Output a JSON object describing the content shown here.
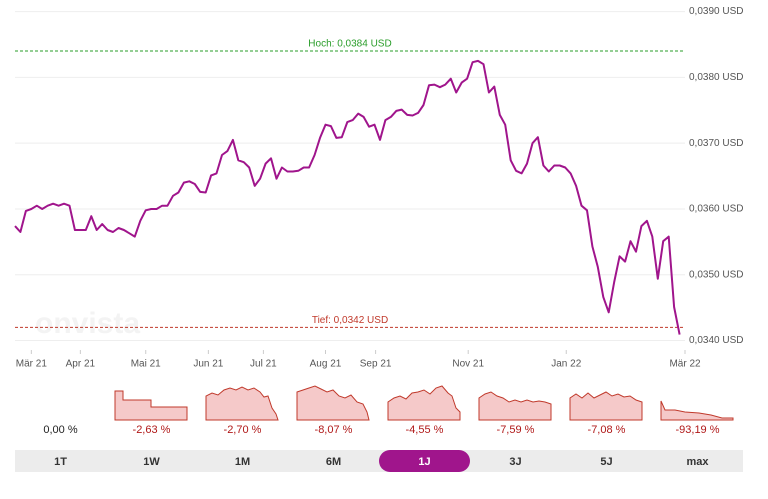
{
  "chart_data": {
    "type": "line",
    "watermark": "onvista",
    "series": [
      {
        "color": "#a0158c",
        "values": [
          0.03574,
          0.03565,
          0.03597,
          0.036,
          0.03605,
          0.036,
          0.03605,
          0.03608,
          0.03605,
          0.03608,
          0.03605,
          0.03568,
          0.03568,
          0.03568,
          0.03589,
          0.03568,
          0.03577,
          0.03568,
          0.03565,
          0.03571,
          0.03568,
          0.03563,
          0.03558,
          0.03582,
          0.03598,
          0.036,
          0.036,
          0.03605,
          0.03605,
          0.0362,
          0.03625,
          0.0364,
          0.03642,
          0.03638,
          0.03626,
          0.03625,
          0.03651,
          0.03654,
          0.03682,
          0.03688,
          0.03705,
          0.03674,
          0.03671,
          0.03663,
          0.03635,
          0.03646,
          0.03669,
          0.03677,
          0.03646,
          0.03663,
          0.03657,
          0.03657,
          0.03658,
          0.03663,
          0.03663,
          0.03682,
          0.03708,
          0.03728,
          0.03726,
          0.03708,
          0.03709,
          0.03732,
          0.03735,
          0.03745,
          0.0374,
          0.03725,
          0.03728,
          0.03705,
          0.03735,
          0.0374,
          0.03749,
          0.03751,
          0.03743,
          0.03742,
          0.03746,
          0.03758,
          0.03788,
          0.03789,
          0.03785,
          0.03789,
          0.03798,
          0.03777,
          0.03792,
          0.03798,
          0.03823,
          0.03825,
          0.0382,
          0.03777,
          0.03786,
          0.03743,
          0.03728,
          0.03674,
          0.03658,
          0.03654,
          0.03669,
          0.037,
          0.03709,
          0.03666,
          0.03657,
          0.03666,
          0.03666,
          0.03663,
          0.03654,
          0.03635,
          0.03605,
          0.03598,
          0.03543,
          0.03512,
          0.03466,
          0.03443,
          0.03489,
          0.03528,
          0.0352,
          0.03551,
          0.03535,
          0.03574,
          0.03582,
          0.03558,
          0.03494,
          0.03551,
          0.03558,
          0.03451,
          0.03409
        ]
      }
    ],
    "xlim": [
      0,
      123
    ],
    "xticks": [
      {
        "value": 3,
        "label": "Mär 21"
      },
      {
        "value": 12,
        "label": "Apr 21"
      },
      {
        "value": 24,
        "label": "Mai 21"
      },
      {
        "value": 35.5,
        "label": "Jun 21"
      },
      {
        "value": 45.6,
        "label": "Jul 21"
      },
      {
        "value": 57,
        "label": "Aug 21"
      },
      {
        "value": 66.2,
        "label": "Sep 21"
      },
      {
        "value": 83.2,
        "label": "Nov 21"
      },
      {
        "value": 101.2,
        "label": "Jan 22"
      },
      {
        "value": 123,
        "label": "Mär 22"
      }
    ],
    "ylim": [
      0.03375,
      0.0391
    ],
    "yticks": [
      {
        "value": 0.034,
        "label": "0,0340 USD"
      },
      {
        "value": 0.035,
        "label": "0,0350 USD"
      },
      {
        "value": 0.036,
        "label": "0,0360 USD"
      },
      {
        "value": 0.037,
        "label": "0,0370 USD"
      },
      {
        "value": 0.038,
        "label": "0,0380 USD"
      },
      {
        "value": 0.039,
        "label": "0,0390 USD"
      }
    ],
    "grid": true,
    "annotations": [
      {
        "text": "Hoch: 0,0384 USD",
        "value": 0.0384,
        "color": "#2a9d2a"
      },
      {
        "text": "Tief: 0,0342 USD",
        "value": 0.0342,
        "color": "#c0392b"
      }
    ]
  },
  "periods": [
    {
      "label": "1T",
      "change": "0,00 %",
      "active": false
    },
    {
      "label": "1W",
      "change": "-2,63 %",
      "active": false
    },
    {
      "label": "1M",
      "change": "-2,70 %",
      "active": false
    },
    {
      "label": "6M",
      "change": "-8,07 %",
      "active": false
    },
    {
      "label": "1J",
      "change": "-4,55 %",
      "active": true
    },
    {
      "label": "3J",
      "change": "-7,59 %",
      "active": false
    },
    {
      "label": "5J",
      "change": "-7,08 %",
      "active": false
    },
    {
      "label": "max",
      "change": "-93,19 %",
      "active": false
    }
  ]
}
